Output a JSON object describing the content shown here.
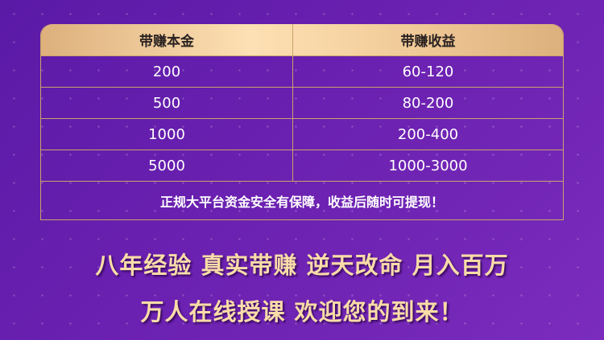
{
  "table": {
    "headers": [
      "带赚本金",
      "带赚收益"
    ],
    "rows": [
      [
        "200",
        "60-120"
      ],
      [
        "500",
        "80-200"
      ],
      [
        "1000",
        "200-400"
      ],
      [
        "5000",
        "1000-3000"
      ]
    ],
    "note": "正规大平台资金安全有保障，收益后随时可提现！"
  },
  "slogans": [
    "八年经验 真实带赚 逆天改命 月入百万",
    "万人在线授课 欢迎您的到来！"
  ],
  "colors": {
    "background": "#6a20b0",
    "gold": "#f9dca8",
    "border": "#c9a46a"
  }
}
